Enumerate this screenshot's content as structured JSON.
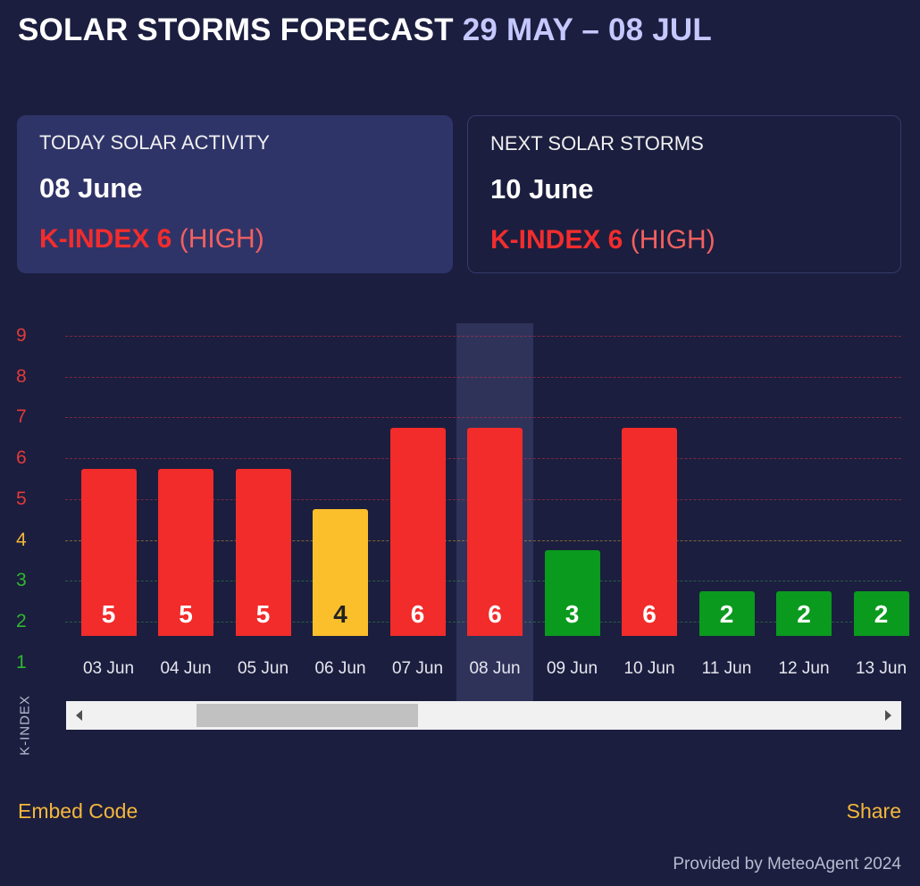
{
  "header": {
    "title": "SOLAR STORMS FORECAST",
    "date_range": "29 MAY – 08 JUL"
  },
  "cards": {
    "today": {
      "label": "TODAY SOLAR ACTIVITY",
      "date": "08 June",
      "kindex_label": "K-INDEX 6",
      "kindex_level": "(HIGH)"
    },
    "next": {
      "label": "NEXT SOLAR STORMS",
      "date": "10 June",
      "kindex_label": "K-INDEX 6",
      "kindex_level": "(HIGH)"
    }
  },
  "chart_data": {
    "type": "bar",
    "ylabel": "K-INDEX",
    "ylim": [
      1,
      9
    ],
    "y_ticks": [
      1,
      2,
      3,
      4,
      5,
      6,
      7,
      8,
      9
    ],
    "y_tick_colors": {
      "1": "#2eb82e",
      "2": "#2eb82e",
      "3": "#2eb82e",
      "4": "#f5b73c",
      "5": "#e03a3a",
      "6": "#e03a3a",
      "7": "#e03a3a",
      "8": "#e03a3a",
      "9": "#e03a3a"
    },
    "grid": true,
    "categories": [
      "03 Jun",
      "04 Jun",
      "05 Jun",
      "06 Jun",
      "07 Jun",
      "08 Jun",
      "09 Jun",
      "10 Jun",
      "11 Jun",
      "12 Jun",
      "13 Jun"
    ],
    "values": [
      5,
      5,
      5,
      4,
      6,
      6,
      3,
      6,
      2,
      2,
      2
    ],
    "bar_colors": [
      "#f22b2b",
      "#f22b2b",
      "#f22b2b",
      "#fbbf2c",
      "#f22b2b",
      "#f22b2b",
      "#0a9a1e",
      "#f22b2b",
      "#0a9a1e",
      "#0a9a1e",
      "#0a9a1e"
    ],
    "label_colors": [
      "#ffffff",
      "#ffffff",
      "#ffffff",
      "#222222",
      "#ffffff",
      "#ffffff",
      "#ffffff",
      "#ffffff",
      "#ffffff",
      "#ffffff",
      "#ffffff"
    ],
    "highlighted_category": "08 Jun",
    "scroll_position": 0.15
  },
  "footer": {
    "embed_label": "Embed Code",
    "share_label": "Share",
    "provided_by": "Provided by MeteoAgent 2024"
  }
}
